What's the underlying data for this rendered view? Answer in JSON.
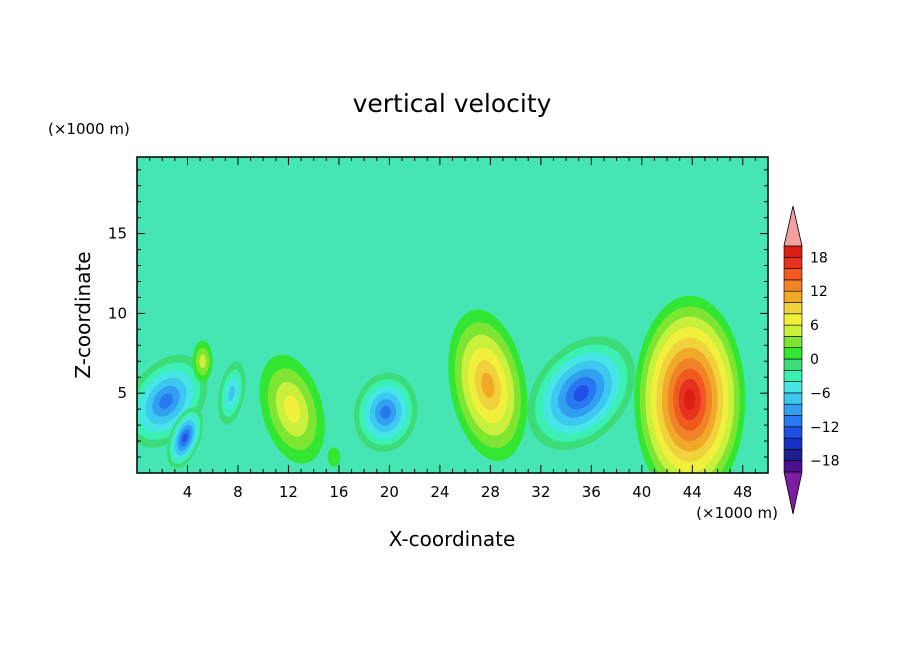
{
  "chart_data": {
    "type": "heatmap",
    "title": "vertical velocity",
    "xlabel": "X-coordinate",
    "ylabel": "Z-coordinate",
    "x_multiplier": "(×1000 m)",
    "y_multiplier": "(×1000 m)",
    "xlim": [
      0,
      50
    ],
    "ylim": [
      0,
      19.8
    ],
    "x_ticks": [
      4,
      8,
      12,
      16,
      20,
      24,
      28,
      32,
      36,
      40,
      44,
      48
    ],
    "y_ticks": [
      5,
      10,
      15
    ],
    "colorbar": {
      "levels": [
        -20,
        -18,
        -16,
        -14,
        -12,
        -10,
        -8,
        -6,
        -4,
        -2,
        0,
        2,
        4,
        6,
        8,
        10,
        12,
        14,
        16,
        18,
        20
      ],
      "tick_labels": [
        "18",
        "12",
        "6",
        "0",
        "−6",
        "−12",
        "−18"
      ],
      "colors": [
        "#4b0f8f",
        "#1e1e8c",
        "#1432c8",
        "#1e50e6",
        "#2878f0",
        "#32a0f0",
        "#3cc8f0",
        "#46e6e6",
        "#3cf0b4",
        "#3cdc78",
        "#32e632",
        "#7ee632",
        "#c8f03c",
        "#f0f03c",
        "#f0d23c",
        "#f0aa28",
        "#f08228",
        "#f05a1e",
        "#e6321e",
        "#dc1e14"
      ],
      "under_color": "#7b1fa2",
      "over_color": "#f2a0a0"
    },
    "features": [
      {
        "x": 2.3,
        "z": 4.5,
        "w": -12
      },
      {
        "x": 3.8,
        "z": 2.2,
        "w": -13
      },
      {
        "x": 5.2,
        "z": 7.0,
        "w": 6
      },
      {
        "x": 7.5,
        "z": 5.0,
        "w": -8
      },
      {
        "x": 12.3,
        "z": 4.0,
        "w": 8
      },
      {
        "x": 15.6,
        "z": 1.0,
        "w": 2
      },
      {
        "x": 19.7,
        "z": 3.8,
        "w": -12
      },
      {
        "x": 27.8,
        "z": 5.5,
        "w": 12
      },
      {
        "x": 35.2,
        "z": 5.0,
        "w": -13
      },
      {
        "x": 43.8,
        "z": 4.6,
        "w": 19
      }
    ]
  }
}
